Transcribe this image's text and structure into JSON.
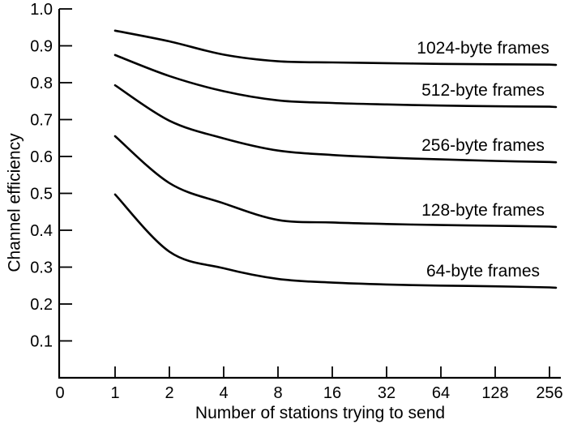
{
  "chart_data": {
    "type": "line",
    "title": "",
    "xlabel": "Number of stations trying to send",
    "ylabel": "Channel efficiency",
    "x_scale": "log2",
    "x": [
      1,
      2,
      4,
      8,
      16,
      32,
      64,
      128,
      256
    ],
    "x_tick_labels": [
      "1",
      "2",
      "4",
      "8",
      "16",
      "32",
      "64",
      "128",
      "256"
    ],
    "origin_label": "0",
    "y_ticks": [
      0.1,
      0.2,
      0.3,
      0.4,
      0.5,
      0.6,
      0.7,
      0.8,
      0.9,
      1.0
    ],
    "y_tick_labels": [
      "0.1",
      "0.2",
      "0.3",
      "0.4",
      "0.5",
      "0.6",
      "0.7",
      "0.8",
      "0.9",
      "1.0"
    ],
    "ylim": [
      0,
      1.0
    ],
    "grid": false,
    "legend_position": "labels-above-curves-right",
    "line_color": "#000000",
    "text_color": "#000000",
    "background": "#ffffff",
    "series": [
      {
        "name": "1024-byte frames",
        "values": [
          0.941,
          0.912,
          0.876,
          0.858,
          0.855,
          0.853,
          0.851,
          0.85,
          0.849
        ]
      },
      {
        "name": "512-byte frames",
        "values": [
          0.875,
          0.818,
          0.777,
          0.752,
          0.745,
          0.741,
          0.738,
          0.736,
          0.735
        ]
      },
      {
        "name": "256-byte frames",
        "values": [
          0.793,
          0.697,
          0.649,
          0.616,
          0.604,
          0.597,
          0.592,
          0.588,
          0.585
        ]
      },
      {
        "name": "128-byte frames",
        "values": [
          0.655,
          0.528,
          0.473,
          0.428,
          0.421,
          0.417,
          0.414,
          0.412,
          0.41
        ]
      },
      {
        "name": "64-byte frames",
        "values": [
          0.497,
          0.342,
          0.297,
          0.268,
          0.258,
          0.253,
          0.25,
          0.248,
          0.245
        ]
      }
    ]
  }
}
